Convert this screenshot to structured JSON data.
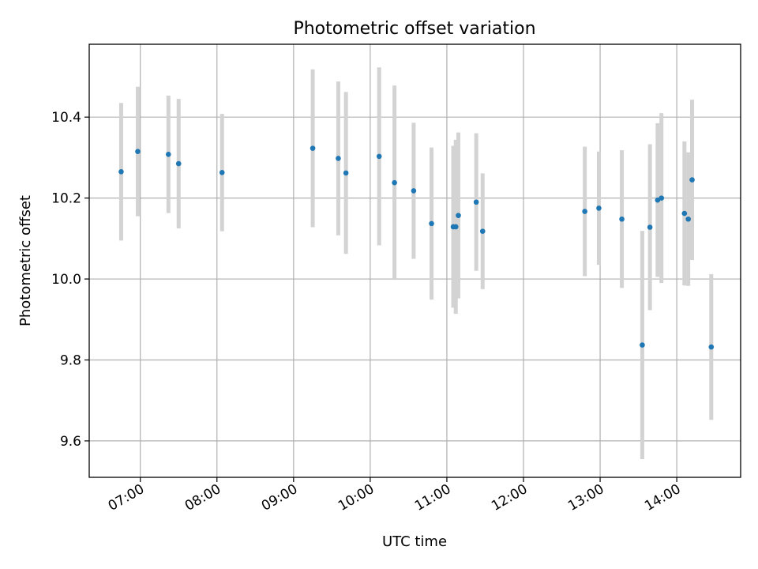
{
  "chart_data": {
    "type": "scatter",
    "title": "Photometric offset variation",
    "xlabel": "UTC time",
    "ylabel": "Photometric offset",
    "x_unit": "hours UTC",
    "xlim": [
      "06:20",
      "14:50"
    ],
    "ylim": [
      9.51,
      10.58
    ],
    "x_ticks": [
      "07:00",
      "08:00",
      "09:00",
      "10:00",
      "11:00",
      "12:00",
      "13:00",
      "14:00"
    ],
    "y_ticks": [
      9.6,
      9.8,
      10.0,
      10.2,
      10.4
    ],
    "y_tick_labels": [
      "9.6",
      "9.8",
      "10.0",
      "10.2",
      "10.4"
    ],
    "grid": true,
    "legend": "none",
    "colors": {
      "marker": "#1f77b4",
      "errorbar": "#d3d3d3",
      "grid": "#b0b0b0"
    },
    "series": [
      {
        "marker": "dot",
        "points": [
          {
            "x": "06:45",
            "y": 10.265,
            "err": 0.17
          },
          {
            "x": "06:58",
            "y": 10.315,
            "err": 0.16
          },
          {
            "x": "07:22",
            "y": 10.308,
            "err": 0.145
          },
          {
            "x": "07:30",
            "y": 10.285,
            "err": 0.16
          },
          {
            "x": "08:04",
            "y": 10.263,
            "err": 0.145
          },
          {
            "x": "09:15",
            "y": 10.323,
            "err": 0.195
          },
          {
            "x": "09:35",
            "y": 10.298,
            "err": 0.19
          },
          {
            "x": "09:41",
            "y": 10.262,
            "err": 0.2
          },
          {
            "x": "10:07",
            "y": 10.303,
            "err": 0.22
          },
          {
            "x": "10:19",
            "y": 10.238,
            "err": 0.24
          },
          {
            "x": "10:34",
            "y": 10.218,
            "err": 0.168
          },
          {
            "x": "10:48",
            "y": 10.137,
            "err": 0.188
          },
          {
            "x": "11:05",
            "y": 10.129,
            "err": 0.2
          },
          {
            "x": "11:07",
            "y": 10.129,
            "err": 0.215
          },
          {
            "x": "11:09",
            "y": 10.157,
            "err": 0.205
          },
          {
            "x": "11:23",
            "y": 10.19,
            "err": 0.17
          },
          {
            "x": "11:28",
            "y": 10.118,
            "err": 0.143
          },
          {
            "x": "12:48",
            "y": 10.167,
            "err": 0.16
          },
          {
            "x": "12:59",
            "y": 10.175,
            "err": 0.14
          },
          {
            "x": "13:17",
            "y": 10.148,
            "err": 0.17
          },
          {
            "x": "13:33",
            "y": 9.837,
            "err": 0.282
          },
          {
            "x": "13:39",
            "y": 10.128,
            "err": 0.205
          },
          {
            "x": "13:45",
            "y": 10.195,
            "err": 0.19
          },
          {
            "x": "13:48",
            "y": 10.2,
            "err": 0.21
          },
          {
            "x": "14:06",
            "y": 10.162,
            "err": 0.178
          },
          {
            "x": "14:09",
            "y": 10.148,
            "err": 0.165
          },
          {
            "x": "14:12",
            "y": 10.245,
            "err": 0.198
          },
          {
            "x": "14:27",
            "y": 9.832,
            "err": 0.18
          }
        ]
      }
    ]
  }
}
